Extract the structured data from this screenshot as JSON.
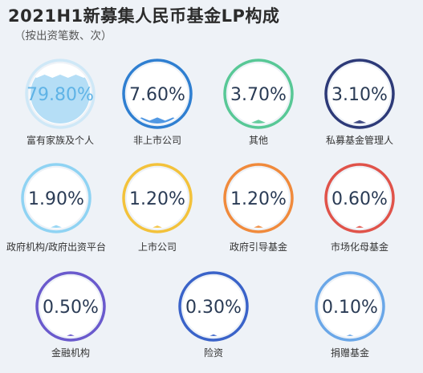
{
  "title": "2021H1新募集人民币基金LP构成",
  "subtitle": "（按出资笔数、次）",
  "chart_data": {
    "type": "bubble-gauge",
    "title": "2021H1新募集人民币基金LP构成",
    "subtitle": "（按出资笔数、次）",
    "unit": "%",
    "items": [
      {
        "label": "富有家族及个人",
        "value": 79.8,
        "display": "79.80%",
        "color": "#cfe8f7",
        "fill": "#a8d8f4"
      },
      {
        "label": "非上市公司",
        "value": 7.6,
        "display": "7.60%",
        "color": "#2f7fd1",
        "fill": "#3e8de0"
      },
      {
        "label": "其他",
        "value": 3.7,
        "display": "3.70%",
        "color": "#58c896",
        "fill": "#58c896"
      },
      {
        "label": "私募基金管理人",
        "value": 3.1,
        "display": "3.10%",
        "color": "#2d3a78",
        "fill": "#2d3a78"
      },
      {
        "label": "政府机构/政府出资平台",
        "value": 1.9,
        "display": "1.90%",
        "color": "#8fd3f3",
        "fill": "#8fd3f3"
      },
      {
        "label": "上市公司",
        "value": 1.2,
        "display": "1.20%",
        "color": "#f3c23b",
        "fill": "#f3c23b"
      },
      {
        "label": "政府引导基金",
        "value": 1.2,
        "display": "1.20%",
        "color": "#f08a3c",
        "fill": "#f08a3c"
      },
      {
        "label": "市场化母基金",
        "value": 0.6,
        "display": "0.60%",
        "color": "#e0534a",
        "fill": "#e0534a"
      },
      {
        "label": "金融机构",
        "value": 0.5,
        "display": "0.50%",
        "color": "#6a5acd",
        "fill": "#6a5acd"
      },
      {
        "label": "险资",
        "value": 0.3,
        "display": "0.30%",
        "color": "#3a63c9",
        "fill": "#3a63c9"
      },
      {
        "label": "捐赠基金",
        "value": 0.1,
        "display": "0.10%",
        "color": "#6aa7e8",
        "fill": "#6aa7e8"
      }
    ]
  }
}
